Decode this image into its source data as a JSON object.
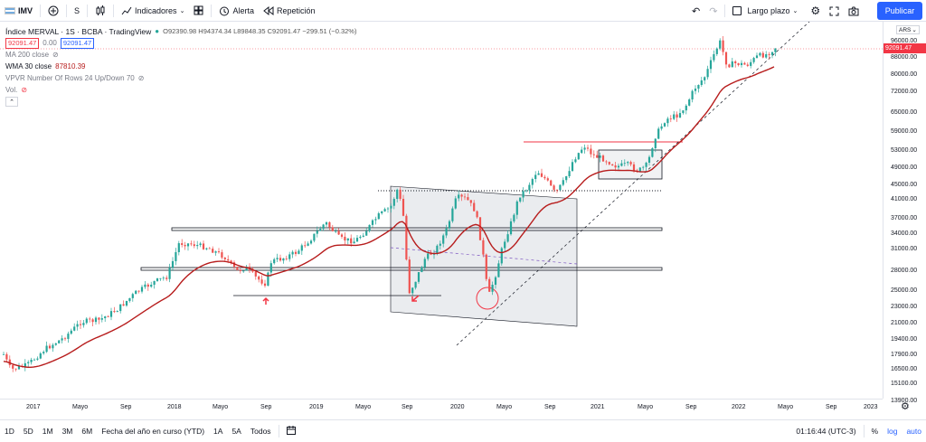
{
  "toolbar": {
    "symbol": "IMV",
    "interval": "S",
    "indicators_label": "Indicadores",
    "alert_label": "Alerta",
    "replay_label": "Repetición",
    "layout_label": "Largo plazo",
    "publish_label": "Publicar"
  },
  "legend": {
    "title": "Índice MERVAL · 1S · BCBA · TradingView",
    "ohlc": "O92390.98 H94374.34 L89848.35 C92091.47 −299.51 (−0.32%)",
    "price_box": "92091.47",
    "spread": "0.00",
    "price_box2": "92091.47",
    "ma": "MA 200 close",
    "wma": "WMA 30 close",
    "wma_value": "87810.39",
    "vpvr": "VPVR Number Of Rows 24 Up/Down 70",
    "vol": "Vol."
  },
  "price_axis": {
    "currency": "ARS",
    "ticks": [
      "96000.00",
      "88000.00",
      "80000.00",
      "72000.00",
      "65000.00",
      "59000.00",
      "53000.00",
      "49000.00",
      "45000.00",
      "41000.00",
      "37000.00",
      "34000.00",
      "31000.00",
      "28000.00",
      "25000.00",
      "23000.00",
      "21000.00",
      "19400.00",
      "17900.00",
      "16500.00",
      "15100.00",
      "13900.00"
    ],
    "current_price": "92091.47"
  },
  "time_axis": {
    "labels": [
      "2017",
      "Mayo",
      "Sep",
      "2018",
      "Mayo",
      "Sep",
      "2019",
      "Mayo",
      "Sep",
      "2020",
      "Mayo",
      "Sep",
      "2021",
      "Mayo",
      "Sep",
      "2022",
      "Mayo",
      "Sep",
      "2023"
    ]
  },
  "bottom_bar": {
    "ranges": [
      "1D",
      "5D",
      "1M",
      "3M",
      "6M",
      "Fecha del año en curso (YTD)",
      "1A",
      "5A",
      "Todos"
    ],
    "time": "01:16:44 (UTC-3)",
    "percent": "%",
    "log": "log",
    "auto": "auto"
  },
  "colors": {
    "accent": "#2962ff",
    "up": "#26a69a",
    "down": "#ef5350",
    "wma": "#b71c1c",
    "annotation_red": "#f23645"
  }
}
